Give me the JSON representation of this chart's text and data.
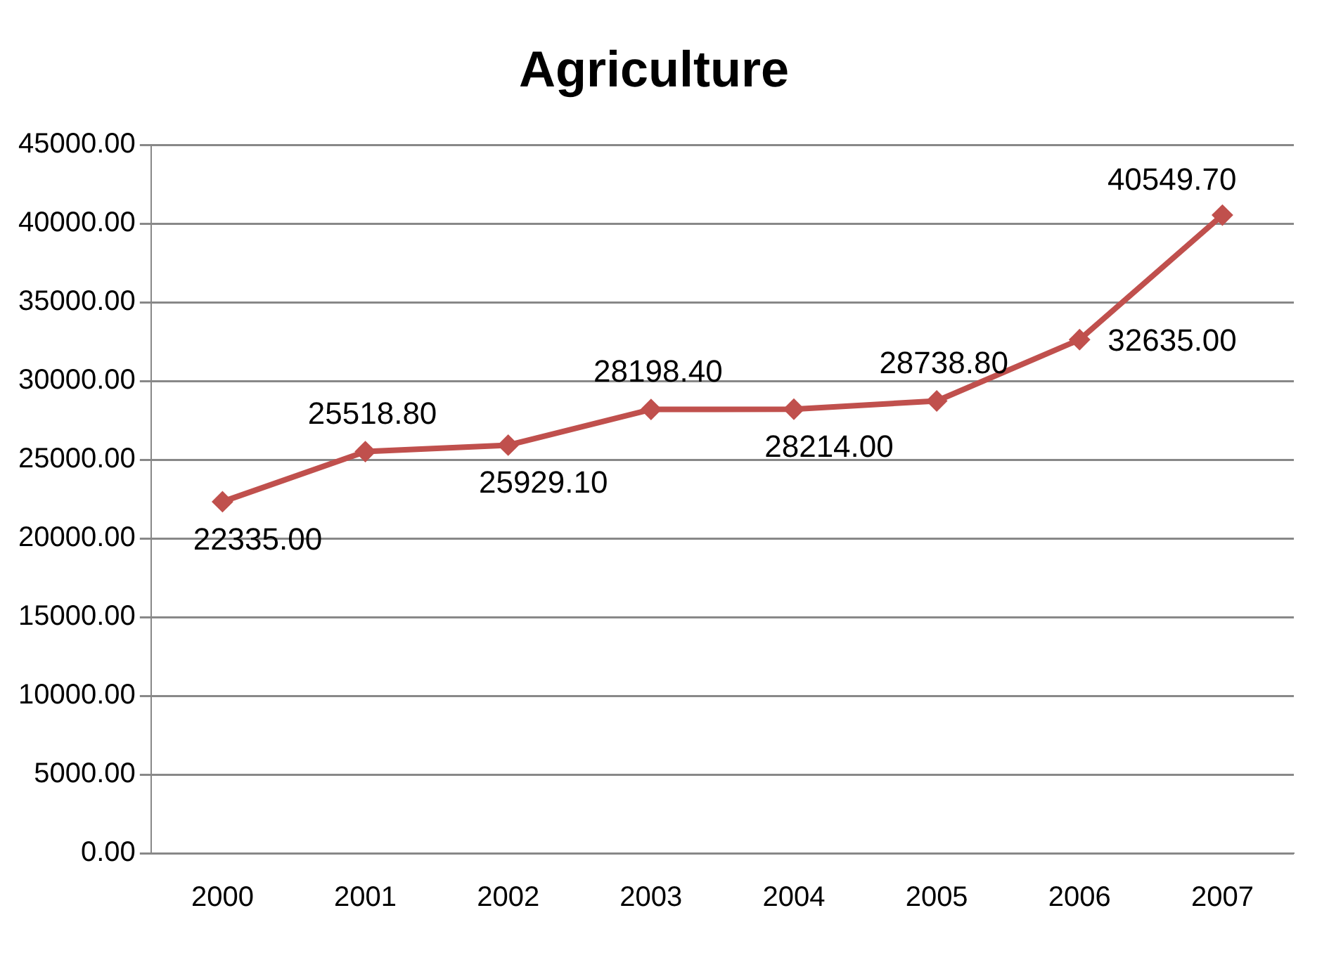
{
  "chart_data": {
    "type": "line",
    "title": "Agriculture",
    "categories": [
      "2000",
      "2001",
      "2002",
      "2003",
      "2004",
      "2005",
      "2006",
      "2007"
    ],
    "series": [
      {
        "color": "#c0504d",
        "values": [
          22335,
          25518.8,
          25929.1,
          28198.4,
          28214,
          28738.8,
          32635,
          40549.7
        ],
        "value_labels": [
          "22335.00",
          "25518.80",
          "25929.10",
          "28198.40",
          "28214.00",
          "28738.80",
          "32635.00",
          "40549.70"
        ]
      }
    ],
    "ylim": [
      0,
      45000
    ],
    "yticks": [
      {
        "value": 0,
        "label": "0.00"
      },
      {
        "value": 5000,
        "label": "5000.00"
      },
      {
        "value": 10000,
        "label": "10000.00"
      },
      {
        "value": 15000,
        "label": "15000.00"
      },
      {
        "value": 20000,
        "label": "20000.00"
      },
      {
        "value": 25000,
        "label": "25000.00"
      },
      {
        "value": 30000,
        "label": "30000.00"
      },
      {
        "value": 35000,
        "label": "35000.00"
      },
      {
        "value": 40000,
        "label": "40000.00"
      },
      {
        "value": 45000,
        "label": "45000.00"
      }
    ],
    "grid": "y",
    "legend": false,
    "marker": "diamond",
    "line_style": "solid"
  }
}
